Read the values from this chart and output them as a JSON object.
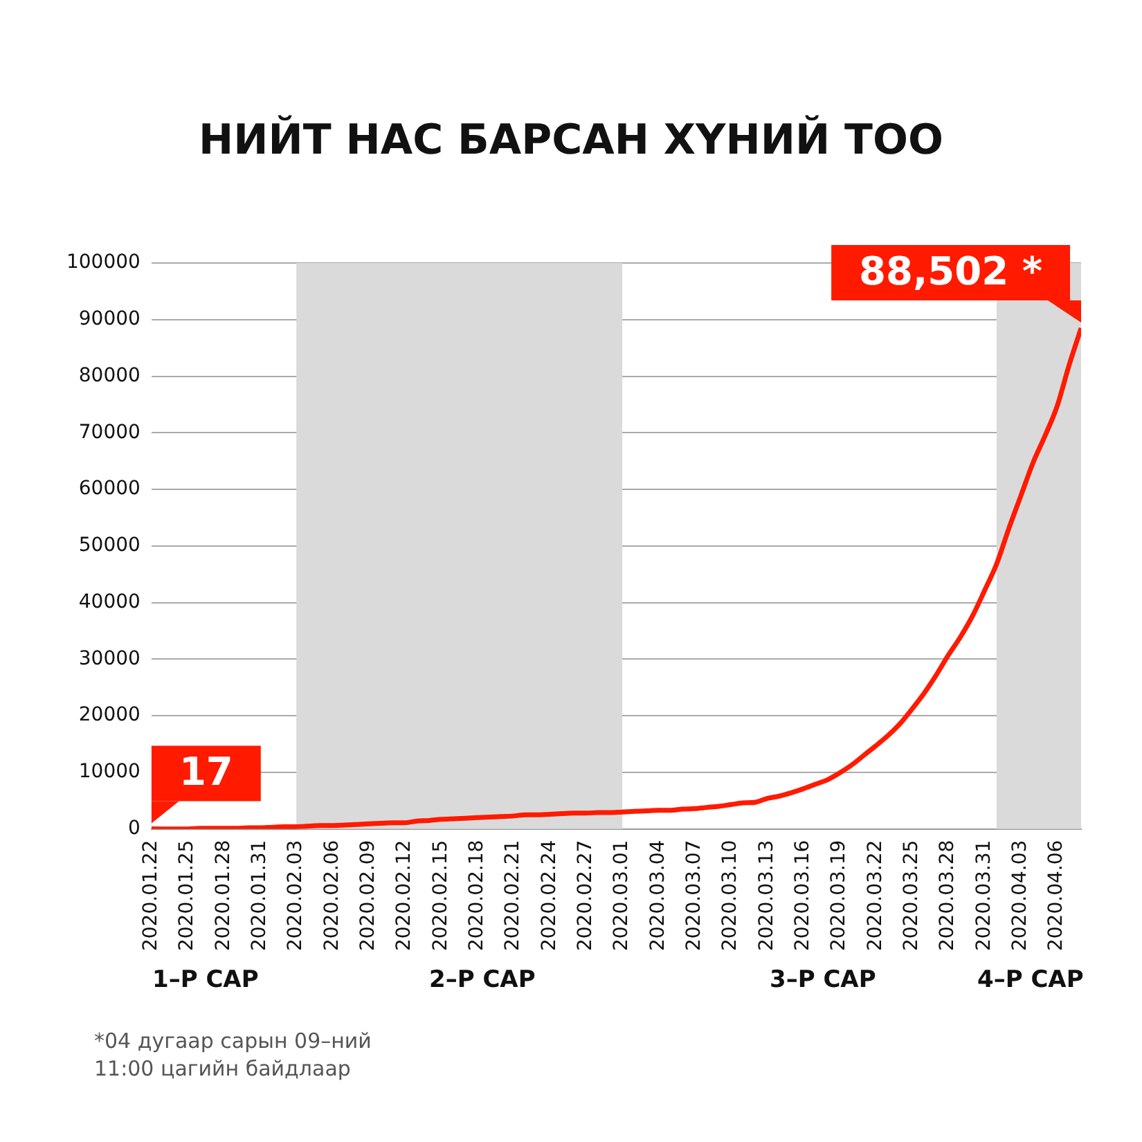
{
  "chart_data": {
    "type": "line",
    "title": "НИЙТ НАС БАРСАН ХҮНИЙ ТОО",
    "x": [
      "2020-01-22",
      "2020-01-23",
      "2020-01-24",
      "2020-01-25",
      "2020-01-26",
      "2020-01-27",
      "2020-01-28",
      "2020-01-29",
      "2020-01-30",
      "2020-01-31",
      "2020-02-01",
      "2020-02-02",
      "2020-02-03",
      "2020-02-04",
      "2020-02-05",
      "2020-02-06",
      "2020-02-07",
      "2020-02-08",
      "2020-02-09",
      "2020-02-10",
      "2020-02-11",
      "2020-02-12",
      "2020-02-13",
      "2020-02-14",
      "2020-02-15",
      "2020-02-16",
      "2020-02-17",
      "2020-02-18",
      "2020-02-19",
      "2020-02-20",
      "2020-02-21",
      "2020-02-22",
      "2020-02-23",
      "2020-02-24",
      "2020-02-25",
      "2020-02-26",
      "2020-02-27",
      "2020-02-28",
      "2020-02-29",
      "2020-03-01",
      "2020-03-02",
      "2020-03-03",
      "2020-03-04",
      "2020-03-05",
      "2020-03-06",
      "2020-03-07",
      "2020-03-08",
      "2020-03-09",
      "2020-03-10",
      "2020-03-11",
      "2020-03-12",
      "2020-03-13",
      "2020-03-14",
      "2020-03-15",
      "2020-03-16",
      "2020-03-17",
      "2020-03-18",
      "2020-03-19",
      "2020-03-20",
      "2020-03-21",
      "2020-03-22",
      "2020-03-23",
      "2020-03-24",
      "2020-03-25",
      "2020-03-26",
      "2020-03-27",
      "2020-03-28",
      "2020-03-29",
      "2020-03-30",
      "2020-03-31",
      "2020-04-01",
      "2020-04-02",
      "2020-04-03",
      "2020-04-04",
      "2020-04-05",
      "2020-04-06",
      "2020-04-07",
      "2020-04-08"
    ],
    "series": [
      {
        "color": "#ff1a00",
        "values": [
          17,
          0,
          0,
          0,
          100,
          100,
          100,
          100,
          200,
          200,
          300,
          400,
          400,
          500,
          600,
          600,
          700,
          800,
          900,
          1000,
          1100,
          1100,
          1400,
          1500,
          1700,
          1800,
          1900,
          2000,
          2100,
          2200,
          2300,
          2500,
          2500,
          2600,
          2700,
          2800,
          2800,
          2900,
          2900,
          3000,
          3100,
          3200,
          3300,
          3300,
          3500,
          3600,
          3800,
          4000,
          4300,
          4600,
          4700,
          5400,
          5800,
          6400,
          7100,
          7900,
          8700,
          9900,
          11300,
          13000,
          14700,
          16500,
          18600,
          21200,
          24000,
          27200,
          30700,
          33900,
          37600,
          42100,
          46800,
          53000,
          58800,
          64600,
          69400,
          74600,
          81900,
          88502
        ],
        "value_labels": [
          "17",
          null,
          null,
          null,
          null,
          null,
          null,
          null,
          null,
          null,
          null,
          null,
          null,
          null,
          null,
          null,
          null,
          null,
          null,
          null,
          null,
          null,
          null,
          null,
          null,
          null,
          null,
          null,
          null,
          null,
          null,
          null,
          null,
          null,
          null,
          null,
          null,
          null,
          null,
          null,
          null,
          null,
          null,
          null,
          null,
          null,
          null,
          null,
          null,
          null,
          null,
          null,
          null,
          null,
          null,
          null,
          null,
          null,
          null,
          null,
          null,
          null,
          null,
          null,
          null,
          null,
          null,
          null,
          null,
          null,
          null,
          null,
          null,
          null,
          null,
          null,
          null,
          "88,502 *"
        ]
      }
    ],
    "xlim": [
      "2020-01-22",
      "2020-04-08"
    ],
    "xticks": [
      {
        "value": "2020-01-22",
        "label": "2020.01.22"
      },
      {
        "value": "2020-01-25",
        "label": "2020.01.25"
      },
      {
        "value": "2020-01-28",
        "label": "2020.01.28"
      },
      {
        "value": "2020-01-31",
        "label": "2020.01.31"
      },
      {
        "value": "2020-02-03",
        "label": "2020.02.03"
      },
      {
        "value": "2020-02-06",
        "label": "2020.02.06"
      },
      {
        "value": "2020-02-09",
        "label": "2020.02.09"
      },
      {
        "value": "2020-02-12",
        "label": "2020.02.12"
      },
      {
        "value": "2020-02-15",
        "label": "2020.02.15"
      },
      {
        "value": "2020-02-18",
        "label": "2020.02.18"
      },
      {
        "value": "2020-02-21",
        "label": "2020.02.21"
      },
      {
        "value": "2020-02-24",
        "label": "2020.02.24"
      },
      {
        "value": "2020-02-27",
        "label": "2020.02.27"
      },
      {
        "value": "2020-03-01",
        "label": "2020.03.01"
      },
      {
        "value": "2020-03-04",
        "label": "2020.03.04"
      },
      {
        "value": "2020-03-07",
        "label": "2020.03.07"
      },
      {
        "value": "2020-03-10",
        "label": "2020.03.10"
      },
      {
        "value": "2020-03-13",
        "label": "2020.03.13"
      },
      {
        "value": "2020-03-16",
        "label": "2020.03.16"
      },
      {
        "value": "2020-03-19",
        "label": "2020.03.19"
      },
      {
        "value": "2020-03-22",
        "label": "2020.03.22"
      },
      {
        "value": "2020-03-25",
        "label": "2020.03.25"
      },
      {
        "value": "2020-03-28",
        "label": "2020.03.28"
      },
      {
        "value": "2020-03-31",
        "label": "2020.03.31"
      },
      {
        "value": "2020-04-03",
        "label": "2020.04.03"
      },
      {
        "value": "2020-04-06",
        "label": "2020.04.06"
      }
    ],
    "ylim": [
      0,
      100000
    ],
    "yticks": [
      0,
      10000,
      20000,
      30000,
      40000,
      50000,
      60000,
      70000,
      80000,
      90000,
      100000
    ],
    "grid": "y",
    "line_style": "solid",
    "marker": "none",
    "bands": [
      {
        "axis": "x",
        "from": "2020-02-03",
        "to": "2020-03-01",
        "color": "#dadada"
      },
      {
        "axis": "x",
        "from": "2020-04-01",
        "to": "2020-04-08",
        "color": "#dadada"
      }
    ],
    "annotations": [
      "1–Р САР",
      "2–Р САР",
      "3–Р САР",
      "4–Р САР",
      "*04 дугаар сарын 09–ний 11:00 цагийн байдлаар"
    ]
  }
}
